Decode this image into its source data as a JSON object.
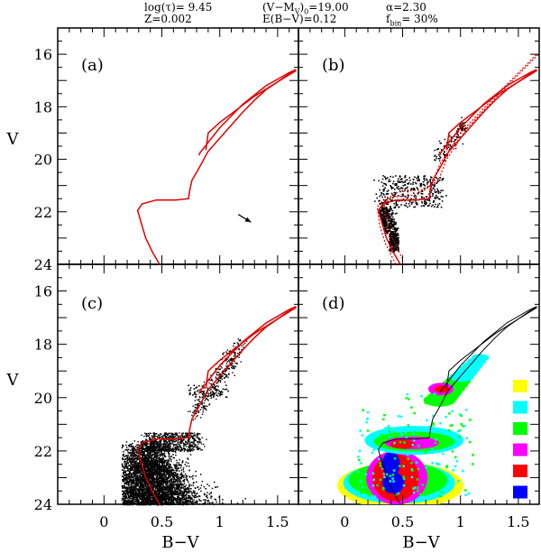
{
  "header": {
    "log_tau": "log(τ)= 9.45",
    "metallicity": "Z=0.002",
    "distance_modulus": "(V−M_V)_0=19.00",
    "reddening": "E(B−V)=0.12",
    "alpha": "α=2.30",
    "binary_fraction": "f_bin= 30%"
  },
  "chart_data": [
    {
      "type": "scatter",
      "panel_label": "(a)",
      "xlabel": "",
      "ylabel": "V",
      "xlim": [
        -0.4,
        1.68
      ],
      "ylim": [
        24,
        15
      ],
      "x_ticks": [
        0,
        0.5,
        1,
        1.5
      ],
      "y_ticks": [
        16,
        18,
        20,
        22,
        24
      ],
      "series": [
        {
          "kind": "isochrone",
          "color": "#e00000",
          "points": [
            [
              0.48,
              24.0
            ],
            [
              0.42,
              23.55
            ],
            [
              0.36,
              23.0
            ],
            [
              0.32,
              22.4
            ],
            [
              0.29,
              21.95
            ],
            [
              0.33,
              21.7
            ],
            [
              0.45,
              21.55
            ],
            [
              0.62,
              21.55
            ],
            [
              0.73,
              21.5
            ],
            [
              0.74,
              21.2
            ],
            [
              0.76,
              20.8
            ],
            [
              0.8,
              20.5
            ],
            [
              0.85,
              20.1
            ],
            [
              0.88,
              19.85
            ],
            [
              0.9,
              19.7
            ],
            [
              1.0,
              19.2
            ],
            [
              1.1,
              18.7
            ],
            [
              1.2,
              18.2
            ],
            [
              1.3,
              17.75
            ],
            [
              1.4,
              17.35
            ],
            [
              1.5,
              17.05
            ],
            [
              1.6,
              16.75
            ],
            [
              1.66,
              16.6
            ]
          ]
        },
        {
          "kind": "isochrone-upper",
          "color": "#e00000",
          "points": [
            [
              0.82,
              19.85
            ],
            [
              0.83,
              19.75
            ],
            [
              1.0,
              18.8
            ],
            [
              1.2,
              17.9
            ],
            [
              1.4,
              17.2
            ],
            [
              1.6,
              16.7
            ],
            [
              1.66,
              16.58
            ]
          ]
        },
        {
          "kind": "isochrone-bluehook",
          "color": "#e00000",
          "points": [
            [
              0.88,
              19.65
            ],
            [
              0.9,
              19.0
            ],
            [
              1.0,
              18.6
            ],
            [
              1.15,
              18.1
            ],
            [
              1.3,
              17.6
            ],
            [
              1.5,
              17.05
            ],
            [
              1.66,
              16.62
            ]
          ]
        }
      ],
      "arrow": {
        "from": [
          1.16,
          22.1
        ],
        "to": [
          1.27,
          22.4
        ],
        "label": "reddening vector"
      }
    },
    {
      "type": "scatter",
      "panel_label": "(b)",
      "xlabel": "",
      "ylabel": "",
      "xlim": [
        -0.4,
        1.68
      ],
      "ylim": [
        24,
        15
      ],
      "series": [
        {
          "kind": "isochrone",
          "color": "#e00000"
        },
        {
          "kind": "binary-sequence",
          "color": "#e00000",
          "dotted": true,
          "points": [
            [
              0.44,
              24.0
            ],
            [
              0.35,
              23.2
            ],
            [
              0.3,
              22.5
            ],
            [
              0.28,
              21.8
            ],
            [
              0.4,
              21.45
            ],
            [
              0.62,
              21.35
            ],
            [
              0.75,
              21.0
            ],
            [
              0.82,
              20.2
            ],
            [
              1.0,
              19.0
            ],
            [
              1.3,
              17.6
            ],
            [
              1.66,
              16.0
            ]
          ]
        },
        {
          "kind": "simulated-stars",
          "color": "#000000",
          "region": "main-sequence turnoff 0.3–1.0, V 19.5–23.6"
        }
      ]
    },
    {
      "type": "scatter",
      "panel_label": "(c)",
      "xlabel": "B−V",
      "ylabel": "V",
      "xlim": [
        -0.4,
        1.68
      ],
      "ylim": [
        24,
        15
      ],
      "series": [
        {
          "kind": "isochrone",
          "color": "#e00000"
        },
        {
          "kind": "observed-stars",
          "color": "#000000",
          "region": "dense main sequence B−V 0.2–0.8, V 21.5–24"
        }
      ]
    },
    {
      "type": "heatmap",
      "panel_label": "(d)",
      "xlabel": "B−V",
      "ylabel": "",
      "xlim": [
        -0.4,
        1.68
      ],
      "ylim": [
        24,
        15
      ],
      "series": [
        {
          "kind": "isochrone",
          "color": "#000000"
        }
      ],
      "legend": {
        "placement": "right",
        "colors": [
          "#ffff00",
          "#00ffff",
          "#00ff00",
          "#ff00ff",
          "#ff0000",
          "#0000ff"
        ]
      }
    }
  ]
}
